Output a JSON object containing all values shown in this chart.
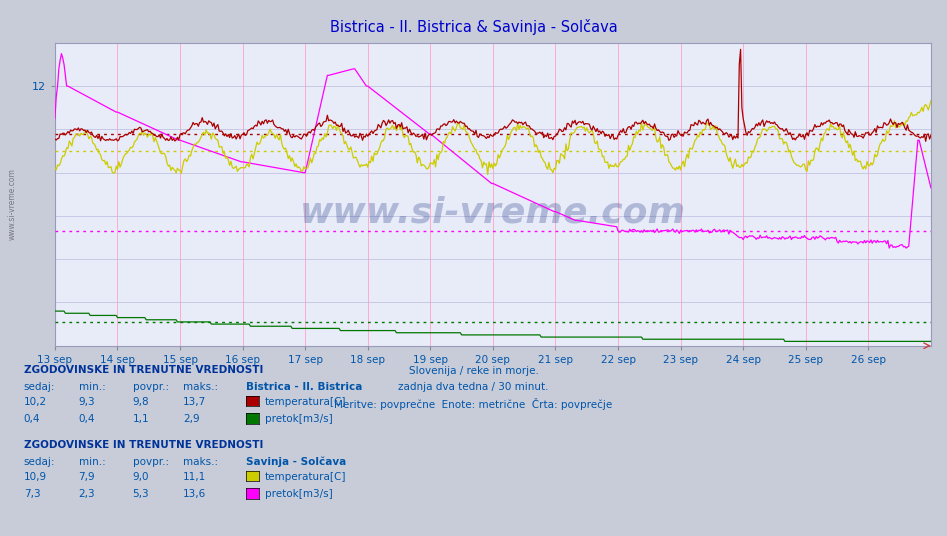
{
  "title": "Bistrica - Il. Bistrica & Savinja - Solčava",
  "title_color": "#0000cc",
  "bg_color": "#c8ccd8",
  "plot_bg_color": "#e8ecf8",
  "xlabel_lines": [
    "Slovenija / reke in morje.",
    "zadnja dva tedna / 30 minut.",
    "Meritve: povprečne  Enote: metrične  Črta: povprečje"
  ],
  "x_tick_labels": [
    "13 sep",
    "14 sep",
    "15 sep",
    "16 sep",
    "17 sep",
    "18 sep",
    "19 sep",
    "20 sep",
    "21 sep",
    "22 sep",
    "23 sep",
    "24 sep",
    "25 sep",
    "26 sep"
  ],
  "y_ticks": [
    12
  ],
  "ylim": [
    0,
    14.0
  ],
  "xlim": [
    0,
    672
  ],
  "n_points": 673,
  "avg_bistrica_temp": 9.8,
  "avg_bistrica_flow": 1.1,
  "avg_savinja_temp": 9.0,
  "avg_savinja_flow": 5.3,
  "colors": {
    "bistrica_temp": "#aa0000",
    "bistrica_flow": "#007700",
    "savinja_temp": "#cccc00",
    "savinja_flow": "#ff00ff"
  },
  "vgrid_color": "#ffaacc",
  "hgrid_color": "#bbbbdd",
  "text_color": "#0055aa",
  "watermark": "www.si-vreme.com",
  "legend_section1_title": "ZGODOVINSKE IN TRENUTNE VREDNOSTI",
  "legend_section1_station": "Bistrica - Il. Bistrica",
  "legend_section1_rows": [
    {
      "sedaj": "10,2",
      "min": "9,3",
      "povpr": "9,8",
      "maks": "13,7",
      "label": "temperatura[C]",
      "color": "#aa0000"
    },
    {
      "sedaj": "0,4",
      "min": "0,4",
      "povpr": "1,1",
      "maks": "2,9",
      "label": "pretok[m3/s]",
      "color": "#007700"
    }
  ],
  "legend_section2_title": "ZGODOVINSKE IN TRENUTNE VREDNOSTI",
  "legend_section2_station": "Savinja - Solčava",
  "legend_section2_rows": [
    {
      "sedaj": "10,9",
      "min": "7,9",
      "povpr": "9,0",
      "maks": "11,1",
      "label": "temperatura[C]",
      "color": "#cccc00"
    },
    {
      "sedaj": "7,3",
      "min": "2,3",
      "povpr": "5,3",
      "maks": "13,6",
      "label": "pretok[m3/s]",
      "color": "#ff00ff"
    }
  ]
}
